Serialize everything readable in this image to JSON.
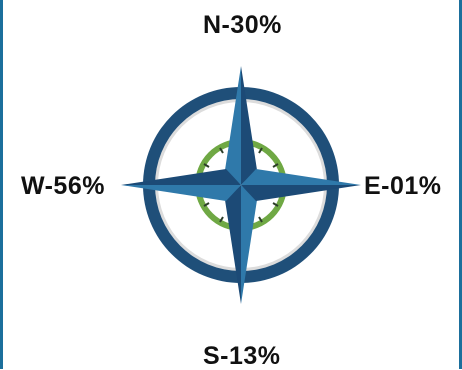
{
  "labels": {
    "north": "N-30%",
    "south": "S-13%",
    "west": "W-56%",
    "east": "E-01%"
  },
  "colors": {
    "frame": "#1b6f9c",
    "outer_ring": "#1f4f79",
    "ring_shadow": "#dcdcdc",
    "inner_ring": "#6fa844",
    "star_light": "#2f79aa",
    "star_dark": "#1c4a76",
    "text": "#111111"
  },
  "icons": {
    "compass": "compass-rose-icon"
  }
}
